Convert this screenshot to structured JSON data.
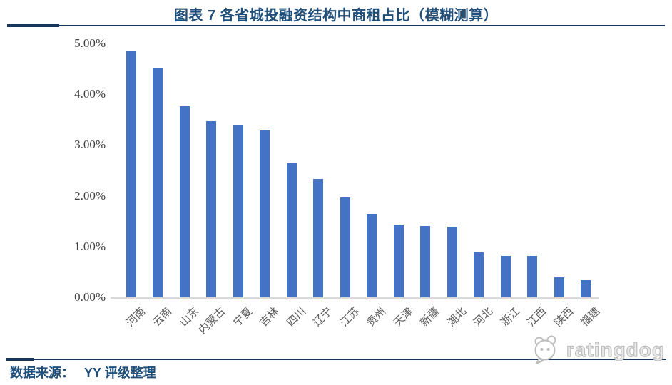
{
  "chart_data": {
    "type": "bar",
    "title": "图表 7 各省城投融资结构中商租占比（模糊测算）",
    "categories": [
      "河南",
      "云南",
      "山东",
      "内蒙古",
      "宁夏",
      "吉林",
      "四川",
      "辽宁",
      "江苏",
      "贵州",
      "天津",
      "新疆",
      "湖北",
      "河北",
      "浙江",
      "江西",
      "陕西",
      "福建"
    ],
    "values": [
      4.85,
      4.51,
      3.77,
      3.47,
      3.38,
      3.28,
      2.65,
      2.33,
      1.97,
      1.64,
      1.43,
      1.41,
      1.39,
      0.88,
      0.82,
      0.81,
      0.39,
      0.34
    ],
    "unit": "%",
    "xlabel": "",
    "ylabel": "",
    "ylim": [
      0,
      5
    ],
    "ytick_labels": [
      "0.00%",
      "1.00%",
      "2.00%",
      "3.00%",
      "4.00%",
      "5.00%"
    ],
    "grid": false,
    "legend": null,
    "bar_color": "#4472C4"
  },
  "footer": {
    "source_label": "数据来源：",
    "source_value": "YY 评级整理",
    "watermark": "ratingdog"
  },
  "icons": {
    "watermark_icon": "dog-face-icon"
  },
  "colors": {
    "bar": "#4472C4",
    "accent": "#17375E",
    "title": "#1F4E79",
    "axis_text": "#595959",
    "ytick_text": "#404040",
    "baseline": "#D9D9D9",
    "watermark": "#BDBDBD"
  }
}
